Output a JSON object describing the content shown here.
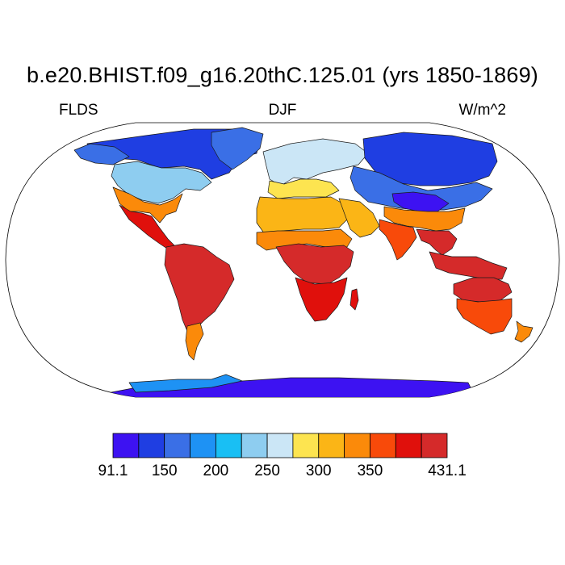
{
  "title": "b.e20.BHIST.f09_g16.20thC.125.01 (yrs 1850-1869)",
  "left_label": "FLDS",
  "center_label": "DJF",
  "right_label": "W/m^2",
  "colorbar": {
    "colors": [
      "#3d12f2",
      "#1f3ee2",
      "#3a6fe6",
      "#1e92f4",
      "#19bff4",
      "#8ecdf0",
      "#cbe6f6",
      "#fde450",
      "#fbb516",
      "#fb8a0a",
      "#f84a0a",
      "#e0100c",
      "#d52a2a"
    ],
    "tick_labels": [
      "91.1",
      "150",
      "200",
      "250",
      "300",
      "350",
      "431.1"
    ]
  },
  "regions": [
    {
      "name": "canada-arctic",
      "level": 1
    },
    {
      "name": "alaska",
      "level": 2
    },
    {
      "name": "greenland",
      "level": 2
    },
    {
      "name": "usa-north",
      "level": 5
    },
    {
      "name": "usa-south",
      "level": 9
    },
    {
      "name": "mexico-central-america",
      "level": 11
    },
    {
      "name": "south-america",
      "level": 12
    },
    {
      "name": "patagonia",
      "level": 9
    },
    {
      "name": "europe",
      "level": 6
    },
    {
      "name": "mediterranean",
      "level": 7
    },
    {
      "name": "sahara",
      "level": 8
    },
    {
      "name": "sahel",
      "level": 9
    },
    {
      "name": "central-africa",
      "level": 12
    },
    {
      "name": "southern-africa",
      "level": 11
    },
    {
      "name": "madagascar",
      "level": 11
    },
    {
      "name": "arabia",
      "level": 8
    },
    {
      "name": "siberia",
      "level": 1
    },
    {
      "name": "central-asia",
      "level": 2
    },
    {
      "name": "tibet",
      "level": 0
    },
    {
      "name": "china-south",
      "level": 9
    },
    {
      "name": "india",
      "level": 10
    },
    {
      "name": "southeast-asia",
      "level": 12
    },
    {
      "name": "indonesia",
      "level": 12
    },
    {
      "name": "australia-north",
      "level": 12
    },
    {
      "name": "australia-south",
      "level": 10
    },
    {
      "name": "new-zealand",
      "level": 9
    },
    {
      "name": "antarctica",
      "level": 0
    },
    {
      "name": "antarctica-coast",
      "level": 3
    }
  ]
}
